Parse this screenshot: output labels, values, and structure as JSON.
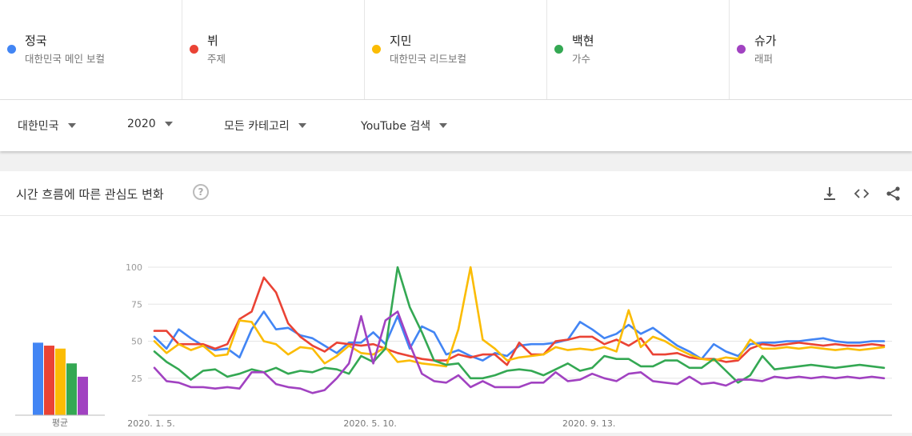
{
  "terms": [
    {
      "name": "정국",
      "sub": "대한민국 메인 보컬",
      "color": "#4285f4"
    },
    {
      "name": "뷔",
      "sub": "주제",
      "color": "#ea4335"
    },
    {
      "name": "지민",
      "sub": "대한민국 리드보컬",
      "color": "#fbbc04"
    },
    {
      "name": "백현",
      "sub": "가수",
      "color": "#34a853"
    },
    {
      "name": "슈가",
      "sub": "래퍼",
      "color": "#a142c1"
    }
  ],
  "filters": {
    "region": "대한민국",
    "period": "2020",
    "category": "모든 카테고리",
    "property": "YouTube 검색"
  },
  "card": {
    "title": "시간 흐름에 따른 관심도 변화",
    "help_glyph": "?"
  },
  "icons": [
    "download-icon",
    "embed-code-icon",
    "share-icon"
  ],
  "chart_data": {
    "type": "line",
    "title": "시간 흐름에 따른 관심도 변화",
    "xlabel": "",
    "ylabel": "",
    "ylim": [
      0,
      100
    ],
    "yticks": [
      25,
      50,
      75,
      100
    ],
    "x_tick_labels": [
      "2020. 1. 5.",
      "2020. 5. 10.",
      "2020. 9. 13."
    ],
    "x": [
      "2020-01-05",
      "2020-01-12",
      "2020-01-19",
      "2020-01-26",
      "2020-02-02",
      "2020-02-09",
      "2020-02-16",
      "2020-02-23",
      "2020-03-01",
      "2020-03-08",
      "2020-03-15",
      "2020-03-22",
      "2020-03-29",
      "2020-04-05",
      "2020-04-12",
      "2020-04-19",
      "2020-04-26",
      "2020-05-03",
      "2020-05-10",
      "2020-05-17",
      "2020-05-24",
      "2020-05-31",
      "2020-06-07",
      "2020-06-14",
      "2020-06-21",
      "2020-06-28",
      "2020-07-05",
      "2020-07-12",
      "2020-07-19",
      "2020-07-26",
      "2020-08-02",
      "2020-08-09",
      "2020-08-16",
      "2020-08-23",
      "2020-08-30",
      "2020-09-06",
      "2020-09-13",
      "2020-09-20",
      "2020-09-27",
      "2020-10-04",
      "2020-10-11",
      "2020-10-18",
      "2020-10-25",
      "2020-11-01",
      "2020-11-08",
      "2020-11-15",
      "2020-11-22",
      "2020-11-29",
      "2020-12-06",
      "2020-12-13",
      "2020-12-20",
      "2020-12-27",
      "2021-01-03",
      "2021-01-10",
      "2021-01-17",
      "2021-01-24",
      "2021-01-31",
      "2021-02-07",
      "2021-02-14",
      "2021-02-21",
      "2021-02-28"
    ],
    "series": [
      {
        "name": "정국",
        "color": "#4285f4",
        "average": 49,
        "values": [
          53,
          45,
          58,
          52,
          47,
          44,
          45,
          39,
          58,
          70,
          58,
          59,
          54,
          52,
          47,
          42,
          49,
          49,
          56,
          48,
          67,
          45,
          60,
          56,
          41,
          44,
          40,
          37,
          42,
          40,
          47,
          48,
          48,
          49,
          51,
          63,
          58,
          52,
          55,
          61,
          55,
          59,
          53,
          47,
          43,
          38,
          48,
          43,
          40,
          48,
          49,
          49,
          50,
          50,
          51,
          52,
          50,
          49,
          49,
          50,
          50
        ]
      },
      {
        "name": "뷔",
        "color": "#ea4335",
        "average": 47,
        "values": [
          57,
          57,
          48,
          48,
          48,
          45,
          48,
          65,
          70,
          93,
          83,
          62,
          53,
          47,
          43,
          49,
          48,
          47,
          48,
          45,
          42,
          40,
          38,
          37,
          37,
          41,
          39,
          41,
          41,
          34,
          49,
          41,
          41,
          50,
          51,
          53,
          53,
          48,
          51,
          47,
          52,
          41,
          41,
          42,
          39,
          38,
          38,
          36,
          37,
          45,
          48,
          47,
          48,
          49,
          48,
          47,
          48,
          47,
          47,
          48,
          47
        ]
      },
      {
        "name": "지민",
        "color": "#fbbc04",
        "average": 45,
        "values": [
          50,
          42,
          48,
          44,
          47,
          40,
          41,
          64,
          63,
          50,
          48,
          41,
          46,
          45,
          35,
          40,
          47,
          42,
          41,
          46,
          36,
          37,
          35,
          34,
          33,
          58,
          100,
          51,
          45,
          37,
          39,
          40,
          41,
          46,
          44,
          45,
          44,
          46,
          43,
          71,
          46,
          53,
          50,
          45,
          41,
          38,
          37,
          39,
          38,
          51,
          45,
          45,
          46,
          45,
          46,
          45,
          44,
          45,
          44,
          45,
          46
        ]
      },
      {
        "name": "백현",
        "color": "#34a853",
        "average": 35,
        "values": [
          43,
          36,
          31,
          24,
          30,
          31,
          26,
          28,
          31,
          29,
          32,
          28,
          30,
          29,
          32,
          31,
          28,
          40,
          36,
          45,
          100,
          73,
          56,
          37,
          34,
          35,
          25,
          25,
          27,
          30,
          31,
          30,
          27,
          31,
          35,
          30,
          32,
          40,
          38,
          38,
          33,
          33,
          37,
          37,
          32,
          32,
          38,
          30,
          22,
          27,
          40,
          31,
          32,
          33,
          34,
          33,
          32,
          33,
          34,
          33,
          32
        ]
      },
      {
        "name": "슈가",
        "color": "#a142c1",
        "average": 26,
        "values": [
          32,
          23,
          22,
          19,
          19,
          18,
          19,
          18,
          29,
          29,
          21,
          19,
          18,
          15,
          17,
          25,
          35,
          67,
          35,
          64,
          70,
          48,
          28,
          23,
          22,
          27,
          19,
          23,
          19,
          19,
          19,
          22,
          22,
          29,
          23,
          24,
          28,
          25,
          23,
          28,
          29,
          23,
          22,
          21,
          26,
          21,
          22,
          20,
          24,
          24,
          23,
          26,
          25,
          26,
          25,
          26,
          25,
          26,
          25,
          26,
          25
        ]
      }
    ]
  }
}
